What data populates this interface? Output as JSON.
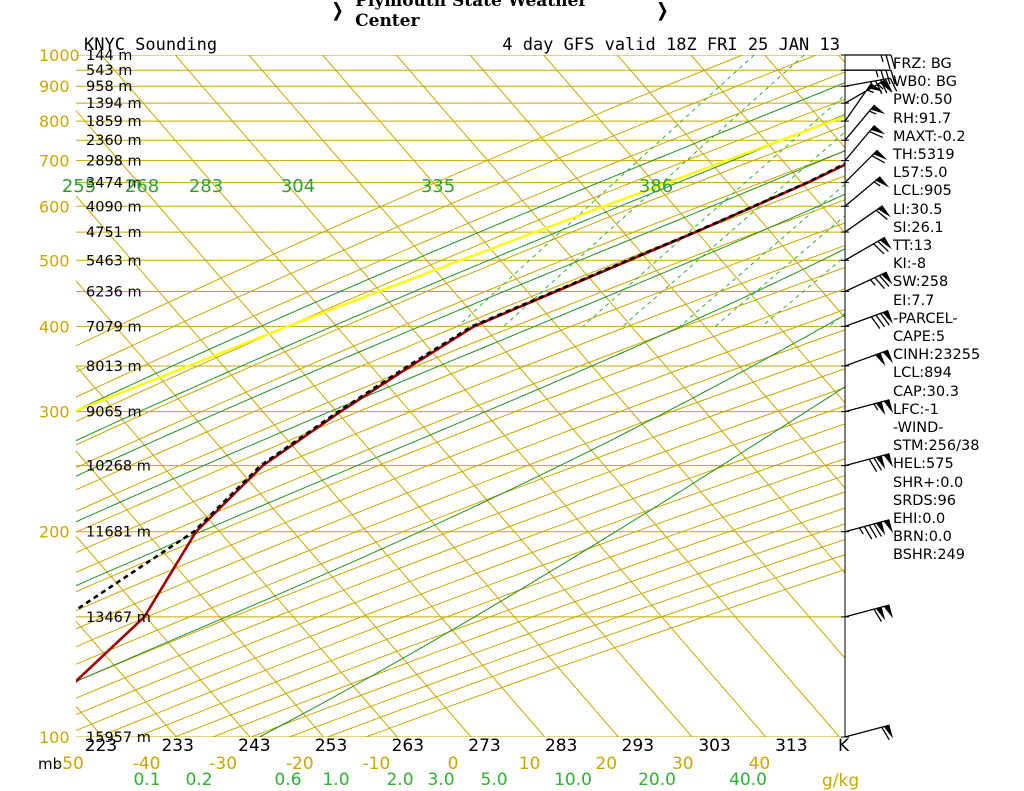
{
  "header": {
    "title": "Plymouth State Weather Center"
  },
  "chart_data": {
    "type": "skew-t sounding",
    "title_left": "KNYC Sounding",
    "title_right": "4 day GFS valid 18Z FRI 25 JAN 13",
    "pressure_axis": {
      "unit": "mb",
      "ticks": [
        100,
        200,
        300,
        400,
        500,
        600,
        700,
        800,
        900,
        1000
      ],
      "range": [
        1000,
        100
      ]
    },
    "height_labels": [
      {
        "p": 100,
        "label": "15957 m"
      },
      {
        "p": 150,
        "label": "13467 m"
      },
      {
        "p": 200,
        "label": "11681 m"
      },
      {
        "p": 250,
        "label": "10268 m"
      },
      {
        "p": 300,
        "label": "9065 m"
      },
      {
        "p": 350,
        "label": "8013 m"
      },
      {
        "p": 400,
        "label": "7079 m"
      },
      {
        "p": 450,
        "label": "6236 m"
      },
      {
        "p": 500,
        "label": "5463 m"
      },
      {
        "p": 550,
        "label": "4751 m"
      },
      {
        "p": 600,
        "label": "4090 m"
      },
      {
        "p": 650,
        "label": "3474 m"
      },
      {
        "p": 700,
        "label": "2898 m"
      },
      {
        "p": 750,
        "label": "2360 m"
      },
      {
        "p": 800,
        "label": "1859 m"
      },
      {
        "p": 850,
        "label": "1394 m"
      },
      {
        "p": 900,
        "label": "958 m"
      },
      {
        "p": 950,
        "label": "543 m"
      },
      {
        "p": 1000,
        "label": "144 m"
      }
    ],
    "temperature_axis": {
      "unit": "C",
      "ticks": [
        -50,
        -40,
        -30,
        -20,
        -10,
        0,
        10,
        20,
        30,
        40
      ]
    },
    "kelvin_labels": {
      "unit": "K",
      "ticks": [
        223,
        233,
        243,
        253,
        263,
        273,
        283,
        293,
        303,
        313
      ]
    },
    "theta_labels": [
      255,
      268,
      283,
      304,
      335,
      386
    ],
    "mixing_ratio_axis": {
      "unit": "g/kg",
      "labels": [
        "0.1",
        "0.2",
        "0.6",
        "1.0",
        "2.0",
        "3.0",
        "5.0",
        "10.0",
        "20.0",
        "40.0"
      ]
    },
    "series": [
      {
        "name": "temperature",
        "color": "#a00000",
        "points": [
          {
            "p": 1000,
            "t": -4.6
          },
          {
            "p": 950,
            "t": -8.0
          },
          {
            "p": 925,
            "t": -9.0
          },
          {
            "p": 900,
            "t": -7.8
          },
          {
            "p": 850,
            "t": -6.5
          },
          {
            "p": 800,
            "t": -9.5
          },
          {
            "p": 750,
            "t": -12.0
          },
          {
            "p": 700,
            "t": -15.7
          },
          {
            "p": 650,
            "t": -19.3
          },
          {
            "p": 600,
            "t": -23.8
          },
          {
            "p": 550,
            "t": -28.7
          },
          {
            "p": 500,
            "t": -34.4
          },
          {
            "p": 450,
            "t": -40.7
          },
          {
            "p": 400,
            "t": -47.7
          },
          {
            "p": 350,
            "t": -51.6
          },
          {
            "p": 300,
            "t": -55.8
          },
          {
            "p": 250,
            "t": -60.0
          },
          {
            "p": 200,
            "t": -61.3
          },
          {
            "p": 150,
            "t": -58.3
          },
          {
            "p": 100,
            "t": -61.5
          }
        ]
      },
      {
        "name": "dewpoint",
        "color": "#000000",
        "points": [
          {
            "p": 1000,
            "t": -8.5
          },
          {
            "p": 950,
            "t": -10.6
          },
          {
            "p": 900,
            "t": -10.0
          },
          {
            "p": 850,
            "t": -9.3
          },
          {
            "p": 800,
            "t": -10.3
          },
          {
            "p": 750,
            "t": -12.2
          },
          {
            "p": 700,
            "t": -16.0
          },
          {
            "p": 650,
            "t": -19.4
          },
          {
            "p": 600,
            "t": -23.9
          },
          {
            "p": 550,
            "t": -28.8
          },
          {
            "p": 500,
            "t": -34.6
          },
          {
            "p": 450,
            "t": -40.9
          },
          {
            "p": 400,
            "t": -48.0
          },
          {
            "p": 350,
            "t": -52.0
          },
          {
            "p": 300,
            "t": -56.1
          },
          {
            "p": 250,
            "t": -60.3
          },
          {
            "p": 200,
            "t": -61.6
          },
          {
            "p": 150,
            "t": -69.0
          },
          {
            "p": 100,
            "t": -81.0
          }
        ]
      },
      {
        "name": "parcel",
        "color": "#ffff00",
        "points": [
          {
            "p": 1000,
            "t": -6.5
          },
          {
            "p": 950,
            "t": -10.8
          },
          {
            "p": 900,
            "t": -14.7
          },
          {
            "p": 850,
            "t": -18.9
          },
          {
            "p": 800,
            "t": -23.3
          },
          {
            "p": 700,
            "t": -32.9
          },
          {
            "p": 600,
            "t": -44.2
          },
          {
            "p": 500,
            "t": -57.3
          },
          {
            "p": 400,
            "t": -73.0
          },
          {
            "p": 300,
            "t": -92.0
          },
          {
            "p": 200,
            "t": -116.0
          },
          {
            "p": 150,
            "t": -131.0
          },
          {
            "p": 100,
            "t": -151.0
          }
        ]
      }
    ],
    "winds": [
      {
        "p": 100,
        "dir": 255,
        "kt": 60
      },
      {
        "p": 150,
        "dir": 255,
        "kt": 110
      },
      {
        "p": 200,
        "dir": 255,
        "kt": 135
      },
      {
        "p": 250,
        "dir": 255,
        "kt": 120
      },
      {
        "p": 300,
        "dir": 255,
        "kt": 105
      },
      {
        "p": 350,
        "dir": 250,
        "kt": 100
      },
      {
        "p": 400,
        "dir": 250,
        "kt": 80
      },
      {
        "p": 450,
        "dir": 245,
        "kt": 75
      },
      {
        "p": 500,
        "dir": 240,
        "kt": 70
      },
      {
        "p": 550,
        "dir": 235,
        "kt": 60
      },
      {
        "p": 600,
        "dir": 230,
        "kt": 55
      },
      {
        "p": 650,
        "dir": 225,
        "kt": 60
      },
      {
        "p": 700,
        "dir": 220,
        "kt": 60
      },
      {
        "p": 750,
        "dir": 220,
        "kt": 55
      },
      {
        "p": 800,
        "dir": 215,
        "kt": 55
      },
      {
        "p": 850,
        "dir": 240,
        "kt": 55
      },
      {
        "p": 900,
        "dir": 260,
        "kt": 45
      },
      {
        "p": 950,
        "dir": 270,
        "kt": 35
      },
      {
        "p": 1000,
        "dir": 270,
        "kt": 25
      }
    ],
    "colors": {
      "isobar": "#c8a800",
      "isotherm": "#c8a800",
      "dry_adiabat": "#c8a800",
      "moist_adiabat": "#209020",
      "mixing_ratio": "#30b030",
      "theta_label": "#30a030",
      "grid_text": "#000000"
    }
  },
  "indices": [
    "FRZ: BG",
    "WB0: BG",
    "PW:0.50",
    "RH:91.7",
    "MAXT:-0.2",
    "TH:5319",
    "L57:5.0",
    "LCL:905",
    "LI:30.5",
    "SI:26.1",
    "TT:13",
    "KI:-8",
    "SW:258",
    "EI:7.7",
    "-PARCEL-",
    "CAPE:5",
    "CINH:23255",
    "LCL:894",
    "CAP:30.3",
    "LFC:-1",
    "-WIND-",
    "STM:256/38",
    "HEL:575",
    "SHR+:0.0",
    "SRDS:96",
    "EHI:0.0",
    "BRN:0.0",
    "BSHR:249"
  ]
}
